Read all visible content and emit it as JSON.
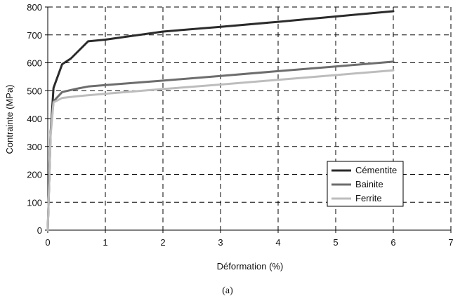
{
  "chart_data": {
    "type": "line",
    "title": "",
    "xlabel": "Déformation (%)",
    "ylabel": "Contrainte (MPa)",
    "xlim": [
      0,
      7
    ],
    "ylim": [
      0,
      800
    ],
    "x_ticks": [
      0,
      1,
      2,
      3,
      4,
      5,
      6,
      7
    ],
    "y_ticks": [
      0,
      100,
      200,
      300,
      400,
      500,
      600,
      700,
      800
    ],
    "grid": true,
    "legend_position": "bottom-right",
    "series": [
      {
        "name": "Cémentite",
        "color": "#2b2b2b",
        "x": [
          0,
          0.05,
          0.1,
          0.25,
          0.4,
          0.7,
          1.0,
          2.0,
          3.0,
          4.0,
          5.0,
          6.0
        ],
        "y": [
          0,
          350,
          510,
          595,
          615,
          677,
          683,
          712,
          729,
          747,
          766,
          785
        ]
      },
      {
        "name": "Bainite",
        "color": "#6d6d6d",
        "x": [
          0,
          0.05,
          0.1,
          0.25,
          0.5,
          0.7,
          1.0,
          2.0,
          3.0,
          4.0,
          5.0,
          6.0
        ],
        "y": [
          0,
          350,
          462,
          495,
          507,
          515,
          520,
          536,
          553,
          570,
          587,
          604
        ]
      },
      {
        "name": "Ferrite",
        "color": "#bdbdbd",
        "x": [
          0,
          0.05,
          0.1,
          0.25,
          0.5,
          1.0,
          2.0,
          3.0,
          4.0,
          5.0,
          6.0
        ],
        "y": [
          0,
          340,
          458,
          474,
          480,
          489,
          506,
          522,
          539,
          556,
          573
        ]
      }
    ]
  },
  "caption": "(a)"
}
